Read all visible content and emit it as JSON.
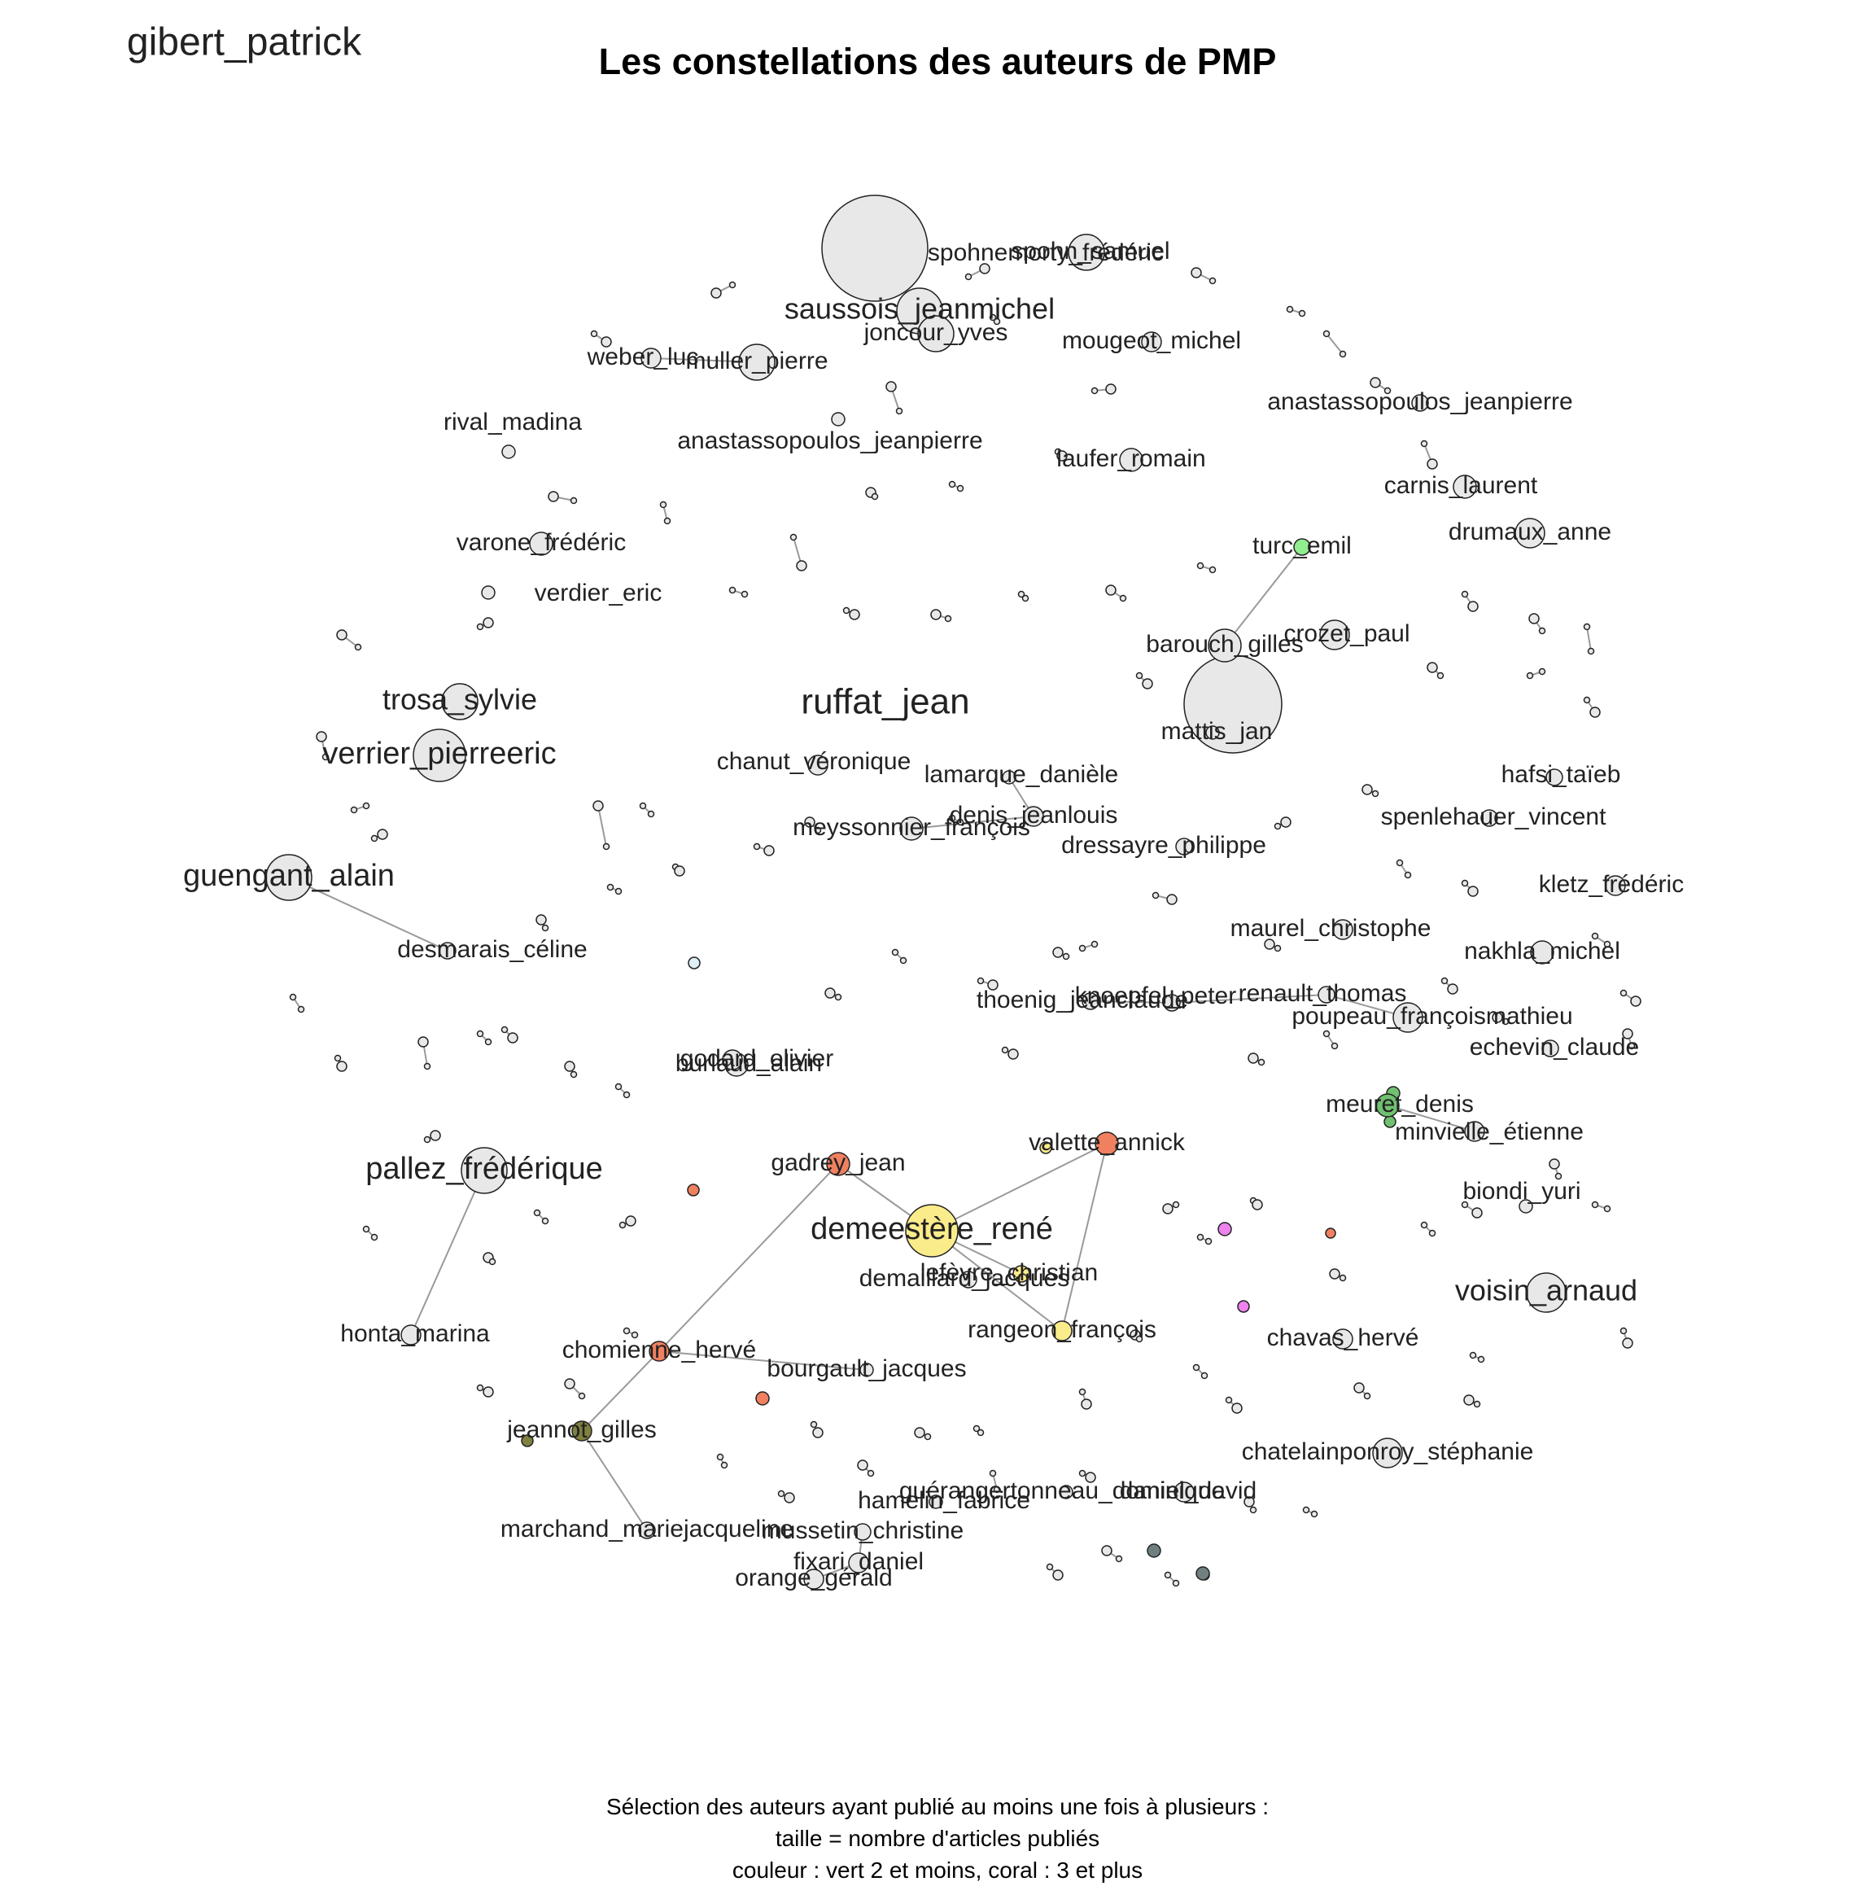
{
  "title": "Les constellations des auteurs de PMP",
  "caption": [
    "Sélection des auteurs ayant publié au moins une fois à plusieurs :",
    "taille  = nombre d'articles publiés",
    "couleur : vert 2 et moins, coral : 3 et plus"
  ],
  "colors": {
    "default_node": "#e8e8e8",
    "edge": "#9a9a9a",
    "node_stroke": "#222222",
    "green": "#90ee90",
    "dark_green": "#70c070",
    "coral": "#f08060",
    "yellow": "#fbec8b",
    "magenta": "#ee82ee",
    "olive": "#808040",
    "light_blue": "#dff0f8",
    "dark_gray": "#708080"
  },
  "authors": [
    {
      "name": "gibert_patrick",
      "size": "xl"
    },
    {
      "name": "ruffat_jean",
      "size": "xl"
    },
    {
      "name": "demeestère_rené",
      "size": "l",
      "color": "yellow"
    },
    {
      "name": "saussois_jeanmichel",
      "size": "l"
    },
    {
      "name": "verrier_pierreeric",
      "size": "l"
    },
    {
      "name": "guengant_alain",
      "size": "l"
    },
    {
      "name": "pallez_frédérique",
      "size": "l"
    },
    {
      "name": "voisin_arnaud",
      "size": "l"
    },
    {
      "name": "trosa_sylvie",
      "size": "l"
    },
    {
      "name": "joncour_yves",
      "size": "m"
    },
    {
      "name": "muller_pierre",
      "size": "m"
    },
    {
      "name": "spohnemorty_frédéric",
      "size": "m"
    },
    {
      "name": "spohn_samuel",
      "size": "m"
    },
    {
      "name": "weber_luc",
      "size": "m"
    },
    {
      "name": "mougeot_michel",
      "size": "m"
    },
    {
      "name": "rival_madina",
      "size": "m"
    },
    {
      "name": "anastassopoulos_jeanpierre",
      "size": "m"
    },
    {
      "name": "anastassopoulos_jeanpierre",
      "size": "m"
    },
    {
      "name": "laufer_romain",
      "size": "m"
    },
    {
      "name": "carnis_laurent",
      "size": "m"
    },
    {
      "name": "drumaux_anne",
      "size": "m"
    },
    {
      "name": "turc_emil",
      "size": "m",
      "color": "green"
    },
    {
      "name": "varone_frédéric",
      "size": "m"
    },
    {
      "name": "verdier_eric",
      "size": "m"
    },
    {
      "name": "barouch_gilles",
      "size": "m"
    },
    {
      "name": "crozet_paul",
      "size": "m"
    },
    {
      "name": "mattis_jan",
      "size": "m"
    },
    {
      "name": "chanut_véronique",
      "size": "m"
    },
    {
      "name": "lamarque_danièle",
      "size": "m"
    },
    {
      "name": "hafsi_taïeb",
      "size": "m"
    },
    {
      "name": "denis_jeanlouis",
      "size": "m"
    },
    {
      "name": "meyssonnier_françois",
      "size": "m"
    },
    {
      "name": "spenlehauer_vincent",
      "size": "m"
    },
    {
      "name": "dressayre_philippe",
      "size": "m"
    },
    {
      "name": "kletz_frédéric",
      "size": "m"
    },
    {
      "name": "maurel_christophe",
      "size": "m"
    },
    {
      "name": "desmarais_céline",
      "size": "m"
    },
    {
      "name": "nakhla_michel",
      "size": "m"
    },
    {
      "name": "thoenig_jeanclaude",
      "size": "m"
    },
    {
      "name": "knoepfel_peter",
      "size": "m"
    },
    {
      "name": "renault_thomas",
      "size": "m"
    },
    {
      "name": "poupeau_françoismathieu",
      "size": "m"
    },
    {
      "name": "echevin_claude",
      "size": "m"
    },
    {
      "name": "burlaud_alain",
      "size": "m"
    },
    {
      "name": "godard_olivier",
      "size": "m"
    },
    {
      "name": "meuret_denis",
      "size": "m",
      "color": "dark_green"
    },
    {
      "name": "minvielle_étienne",
      "size": "m"
    },
    {
      "name": "gadrey_jean",
      "size": "m",
      "color": "coral"
    },
    {
      "name": "valette_annick",
      "size": "m",
      "color": "coral"
    },
    {
      "name": "biondi_yuri",
      "size": "m"
    },
    {
      "name": "lefèvre_christian",
      "size": "m",
      "color": "yellow"
    },
    {
      "name": "demaillard_jacques",
      "size": "m"
    },
    {
      "name": "honta_marina",
      "size": "m"
    },
    {
      "name": "rangeon_françois",
      "size": "m",
      "color": "yellow"
    },
    {
      "name": "chavas_hervé",
      "size": "m"
    },
    {
      "name": "chomienne_hervé",
      "size": "m",
      "color": "coral"
    },
    {
      "name": "bourgault_jacques",
      "size": "m"
    },
    {
      "name": "jeannot_gilles",
      "size": "m",
      "color": "olive"
    },
    {
      "name": "chatelainponroy_stéphanie",
      "size": "m"
    },
    {
      "name": "hamelin_fabrice",
      "size": "m"
    },
    {
      "name": "guérangertonneau_dominique",
      "size": "m"
    },
    {
      "name": "daniel_david",
      "size": "m"
    },
    {
      "name": "marchand_mariejacqueline",
      "size": "m"
    },
    {
      "name": "mussetin_christine",
      "size": "m"
    },
    {
      "name": "fixari_daniel",
      "size": "m"
    },
    {
      "name": "orange_gérald",
      "size": "m"
    }
  ]
}
